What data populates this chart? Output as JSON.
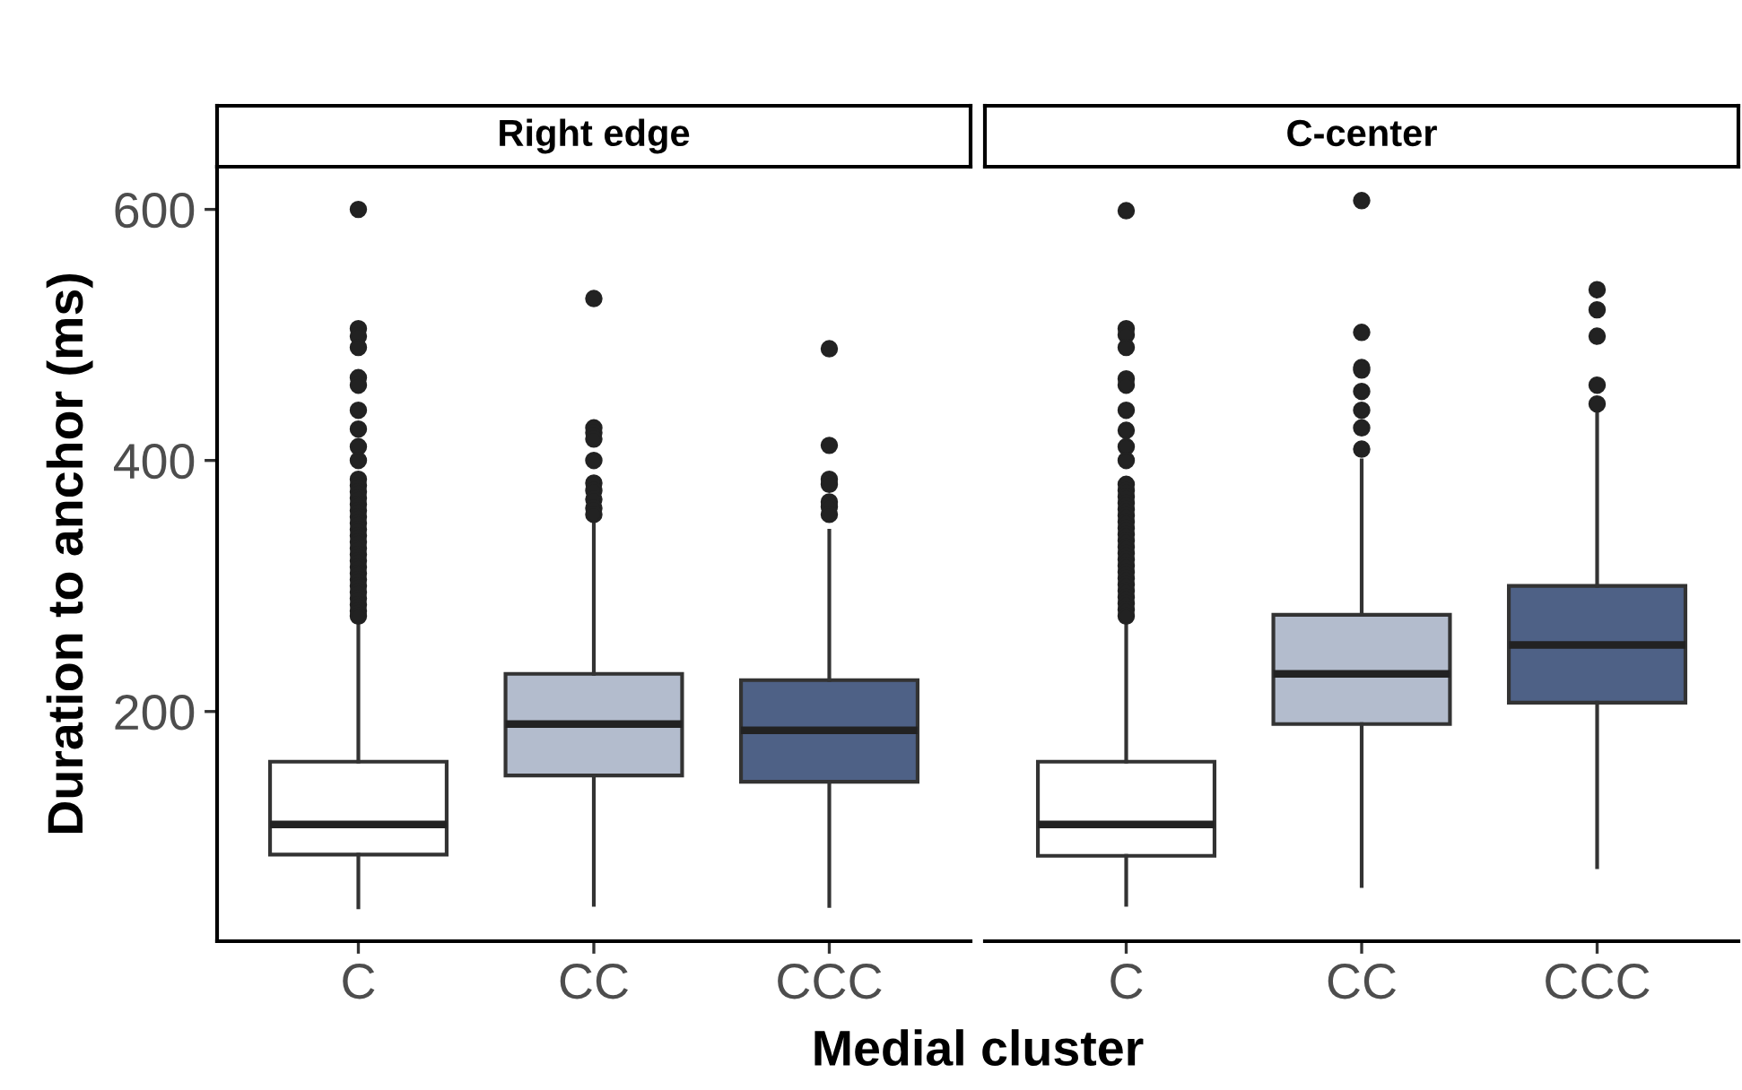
{
  "chart_data": [
    {
      "type": "box",
      "title": "Right edge",
      "xlabel": "Medial cluster",
      "ylabel": "Duration to anchor (ms)",
      "categories": [
        "C",
        "CC",
        "CCC"
      ],
      "colors": [
        "#ffffff",
        "#b3bccd",
        "#4e6186"
      ],
      "ylim": [
        17,
        634
      ],
      "yticks": [
        200,
        400,
        600
      ],
      "grid": false,
      "marker": "circle",
      "boxes": [
        {
          "low": 44,
          "q1": 86,
          "median": 110,
          "q3": 160,
          "high": 273,
          "outliers": [
            600,
            505,
            499,
            490,
            466,
            460,
            440,
            425,
            411,
            400,
            385,
            380,
            375,
            370,
            365,
            360,
            355,
            350,
            345,
            340,
            335,
            330,
            325,
            320,
            315,
            310,
            305,
            300,
            295,
            290,
            285,
            280,
            276
          ]
        },
        {
          "low": 46,
          "q1": 149,
          "median": 190,
          "q3": 230,
          "high": 352,
          "outliers": [
            529,
            426,
            422,
            417,
            400,
            382,
            376,
            369,
            362,
            357
          ]
        },
        {
          "low": 45,
          "q1": 144,
          "median": 185,
          "q3": 225,
          "high": 344,
          "outliers": [
            489,
            412,
            385,
            381,
            367,
            363,
            357
          ]
        }
      ]
    },
    {
      "type": "box",
      "title": "C-center",
      "categories": [
        "C",
        "CC",
        "CCC"
      ],
      "colors": [
        "#ffffff",
        "#b3bccd",
        "#4e6186"
      ],
      "ylim": [
        17,
        634
      ],
      "tick_labels": "x",
      "grid": false,
      "marker": "circle",
      "boxes": [
        {
          "low": 46,
          "q1": 85,
          "median": 110,
          "q3": 160,
          "high": 271,
          "outliers": [
            599,
            505,
            500,
            490,
            465,
            460,
            440,
            424,
            411,
            400,
            381,
            376,
            371,
            366,
            361,
            356,
            351,
            346,
            341,
            336,
            331,
            326,
            321,
            316,
            311,
            306,
            301,
            296,
            291,
            286,
            281,
            276
          ]
        },
        {
          "low": 61,
          "q1": 190,
          "median": 230,
          "q3": 277,
          "high": 400,
          "outliers": [
            607,
            502,
            474,
            472,
            455,
            440,
            426,
            409
          ]
        },
        {
          "low": 76,
          "q1": 207,
          "median": 253,
          "q3": 300,
          "high": 439,
          "outliers": [
            536,
            520,
            499,
            460,
            445
          ]
        }
      ]
    }
  ]
}
